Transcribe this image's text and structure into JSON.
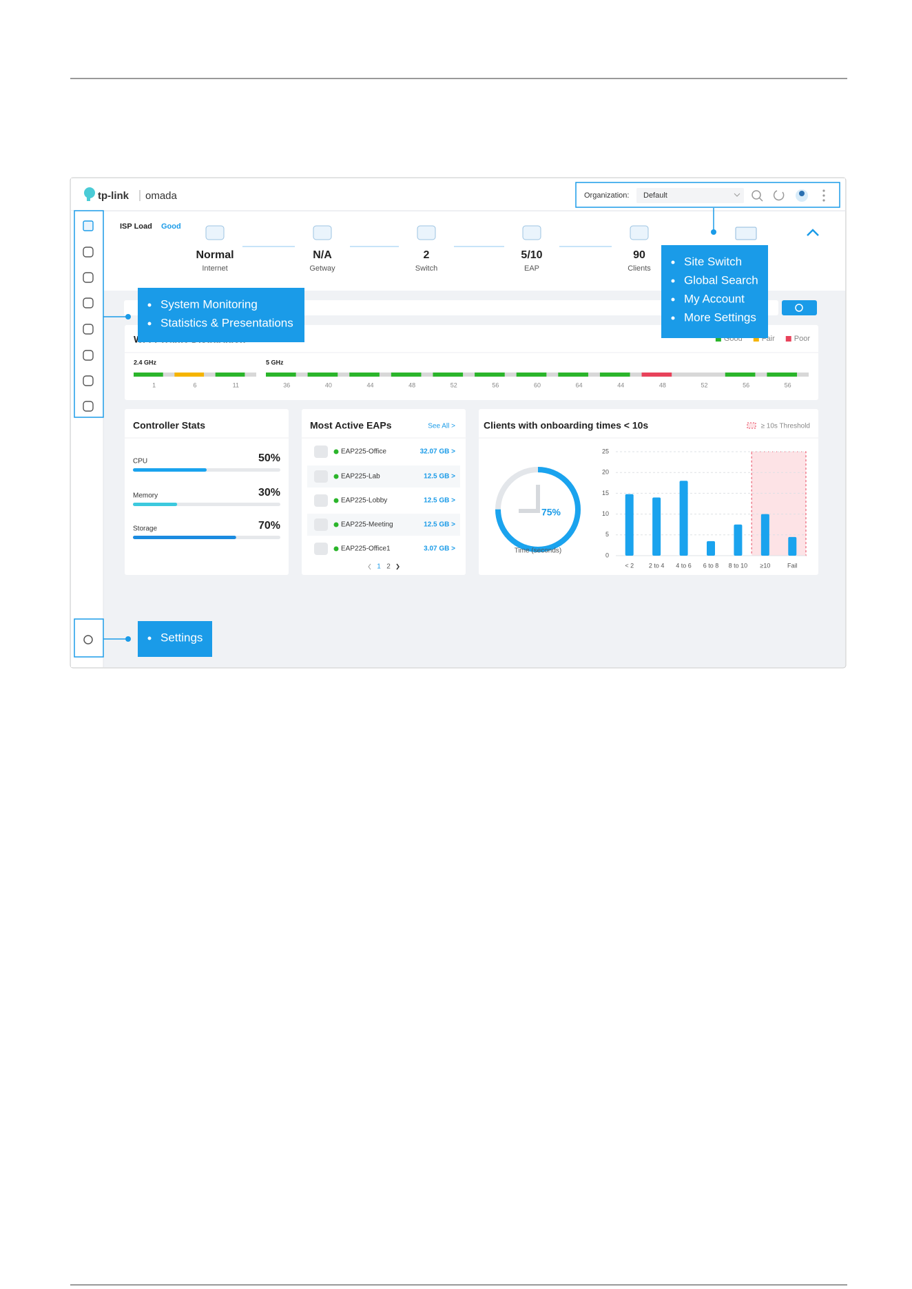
{
  "header": {
    "logo": "tp-link",
    "product": "omada",
    "org_label": "Organization:",
    "org_value": "Default"
  },
  "isp": {
    "label": "ISP Load",
    "status": "Good"
  },
  "topology": [
    {
      "value": "Normal",
      "label": "Internet"
    },
    {
      "value": "N/A",
      "label": "Getway"
    },
    {
      "value": 2,
      "label": "Switch"
    },
    {
      "value": "5/10",
      "label": "EAP"
    },
    {
      "value": 90,
      "label": "Clients"
    }
  ],
  "callouts": {
    "monitoring": [
      "System Monitoring",
      "Statistics & Presentations"
    ],
    "account": [
      "Site Switch",
      "Global Search",
      "My Account",
      "More Settings"
    ],
    "settings": [
      "Settings"
    ]
  },
  "wifi": {
    "title": "Wi-Fi Traffic Distribution",
    "legend": [
      {
        "label": "Good",
        "color": "#2bb52b"
      },
      {
        "label": "Fair",
        "color": "#f5b400"
      },
      {
        "label": "Poor",
        "color": "#e8425a"
      }
    ],
    "band24": {
      "label": "2.4 GHz",
      "channels": [
        "1",
        "6",
        "11"
      ],
      "colors": [
        "#2bb52b",
        "#f5b400",
        "#2bb52b"
      ]
    },
    "band5": {
      "label": "5 GHz",
      "channels": [
        "36",
        "40",
        "44",
        "48",
        "52",
        "56",
        "60",
        "64",
        "44",
        "48",
        "52",
        "56",
        "56"
      ],
      "colors": [
        "#2bb52b",
        "#2bb52b",
        "#2bb52b",
        "#2bb52b",
        "#2bb52b",
        "#2bb52b",
        "#2bb52b",
        "#2bb52b",
        "#2bb52b",
        "#e8425a",
        "#d8d8d8",
        "#2bb52b",
        "#2bb52b"
      ]
    }
  },
  "controller": {
    "title": "Controller Stats",
    "items": [
      {
        "label": "CPU",
        "value": 50,
        "value_label": "50%",
        "color": "#1aa3ee"
      },
      {
        "label": "Memory",
        "value": 30,
        "value_label": "30%",
        "color": "#3cc9de"
      },
      {
        "label": "Storage",
        "value": 70,
        "value_label": "70%",
        "color": "#1b8be0"
      }
    ]
  },
  "eaps": {
    "title": "Most Active EAPs",
    "see_all": "See All >",
    "rows": [
      {
        "name": "EAP225-Office",
        "traffic": "32.07 GB >"
      },
      {
        "name": "EAP225-Lab",
        "traffic": "12.5 GB >"
      },
      {
        "name": "EAP225-Lobby",
        "traffic": "12.5 GB >"
      },
      {
        "name": "EAP225-Meeting",
        "traffic": "12.5 GB >"
      },
      {
        "name": "EAP225-Office1",
        "traffic": "3.07 GB >"
      }
    ],
    "pages": [
      "1",
      "2"
    ]
  },
  "onboarding": {
    "title": "Clients with onboarding times < 10s",
    "threshold_label": "≥ 10s Threshold",
    "donut": {
      "value": 75,
      "value_label": "75%",
      "caption": "Time (seconds)"
    },
    "chart_data": {
      "type": "bar",
      "categories": [
        "< 2",
        "2 to 4",
        "4 to 6",
        "6 to 8",
        "8 to 10",
        "≥10",
        "Fail"
      ],
      "values": [
        14.8,
        14,
        18,
        3.5,
        7.5,
        10,
        4.5
      ],
      "color": "#1aa3ee",
      "ylim": [
        0,
        25
      ],
      "yticks": [
        0,
        5,
        10,
        15,
        20,
        25
      ],
      "grid": true
    }
  }
}
